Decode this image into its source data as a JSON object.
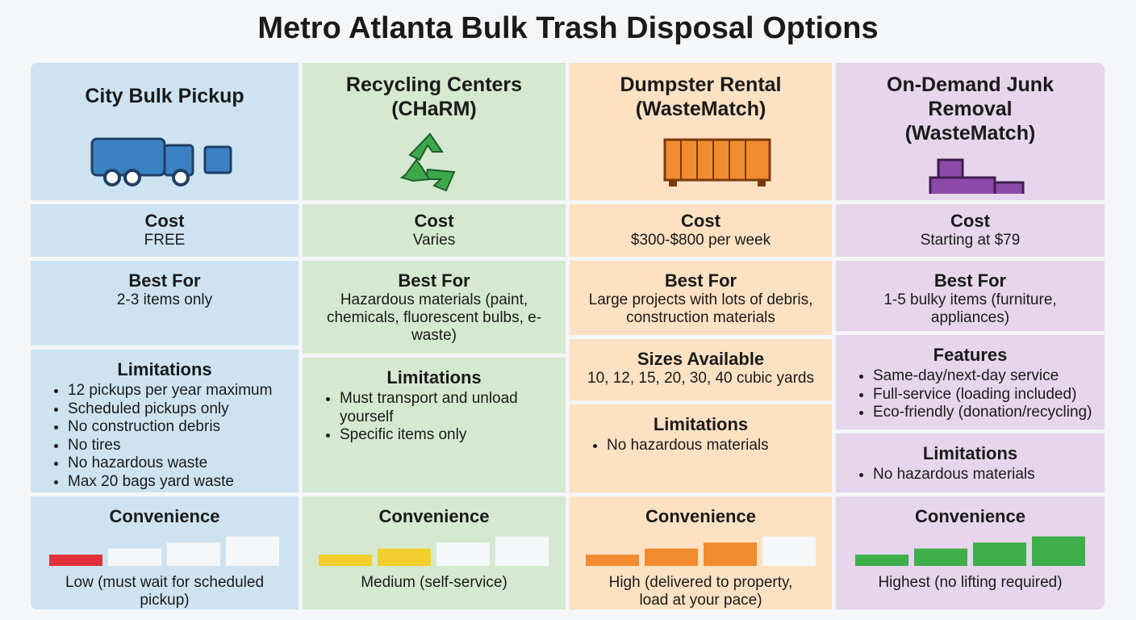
{
  "title": "Metro Atlanta Bulk Trash Disposal Options",
  "convenience_scale": 4,
  "columns": [
    {
      "name_lines": [
        "City Bulk Pickup"
      ],
      "bg": "#cde3f1",
      "sections": [
        {
          "heading": "Cost",
          "text": "FREE"
        },
        {
          "heading": "Best For",
          "text": "2-3 items only"
        },
        {
          "heading": "Limitations",
          "items": [
            "12 pickups per year maximum",
            "Scheduled pickups only",
            "No construction debris",
            "No tires",
            "No hazardous waste",
            "Max 20 bags yard waste"
          ]
        }
      ],
      "convenience": {
        "heading": "Convenience",
        "level": 1,
        "color": "#e0303a",
        "text": "Low (must wait for scheduled pickup)"
      }
    },
    {
      "name_lines": [
        "Recycling Centers",
        "(CHaRM)"
      ],
      "bg": "#d5e9d0",
      "sections": [
        {
          "heading": "Cost",
          "text": "Varies"
        },
        {
          "heading": "Best For",
          "text": "Hazardous materials (paint, chemicals, fluorescent bulbs, e-waste)"
        },
        {
          "heading": "Limitations",
          "items": [
            "Must transport and unload yourself",
            "Specific items only"
          ]
        }
      ],
      "convenience": {
        "heading": "Convenience",
        "level": 2,
        "color": "#f2cf2c",
        "text": "Medium (self-service)"
      }
    },
    {
      "name_lines": [
        "Dumpster Rental",
        "(WasteMatch)"
      ],
      "bg": "#fde1c2",
      "sections": [
        {
          "heading": "Cost",
          "text": "$300-$800 per week"
        },
        {
          "heading": "Best For",
          "text": "Large projects with lots of debris, construction materials"
        },
        {
          "heading": "Sizes Available",
          "text": "10, 12, 15, 20, 30, 40 cubic yards"
        },
        {
          "heading": "Limitations",
          "items": [
            "No hazardous materials"
          ]
        }
      ],
      "convenience": {
        "heading": "Convenience",
        "level": 3,
        "color": "#f28a2e",
        "text": "High (delivered to property, load at your pace)"
      }
    },
    {
      "name_lines": [
        "On-Demand Junk Removal",
        "(WasteMatch)"
      ],
      "bg": "#e6d5eb",
      "sections": [
        {
          "heading": "Cost",
          "text": "Starting at $79"
        },
        {
          "heading": "Best For",
          "text": "1-5 bulky items (furniture, appliances)"
        },
        {
          "heading": "Features",
          "items": [
            "Same-day/next-day service",
            "Full-service (loading included)",
            "Eco-friendly (donation/recycling)"
          ]
        },
        {
          "heading": "Limitations",
          "items": [
            "No hazardous materials"
          ]
        }
      ],
      "convenience": {
        "heading": "Convenience",
        "level": 4,
        "color": "#3fae4a",
        "text": "Highest (no lifting required)"
      }
    }
  ]
}
